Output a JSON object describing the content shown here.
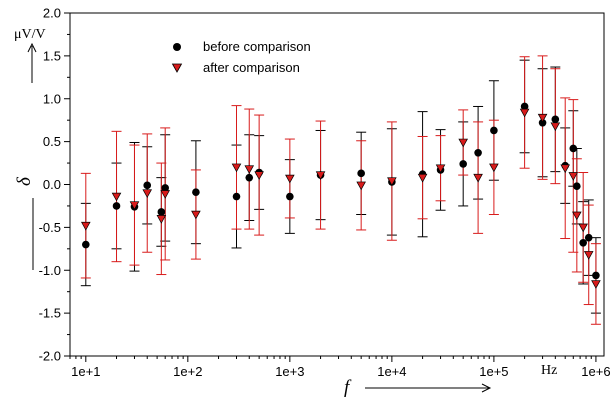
{
  "chart_data": {
    "type": "scatter",
    "title": "",
    "x_scale": "log",
    "xlim": [
      7,
      1200000
    ],
    "ylim": [
      -2.0,
      2.0
    ],
    "x_ticks": [
      10,
      100,
      1000,
      10000,
      100000,
      1000000
    ],
    "x_tick_labels": [
      "1e+1",
      "1e+2",
      "1e+3",
      "1e+4",
      "1e+5",
      "1e+6"
    ],
    "y_ticks": [
      -2.0,
      -1.5,
      -1.0,
      -0.5,
      0.0,
      0.5,
      1.0,
      1.5,
      2.0
    ],
    "y_tick_labels": [
      "-2.0",
      "-1.5",
      "-1.0",
      "-0.5",
      "0.0",
      "0.5",
      "1.0",
      "1.5",
      "2.0"
    ],
    "y_unit": "μV/V",
    "x_unit": "Hz",
    "ylabel_symbol": "δ",
    "xlabel_symbol": "f",
    "grid": false,
    "legend_placement": "top-left",
    "colors": {
      "before": "#000000",
      "after": "#d81b1b"
    },
    "series": [
      {
        "name": "before comparison",
        "marker": "circle",
        "color": "#000000",
        "points": [
          {
            "x": 10,
            "y": -0.7,
            "err": 0.48
          },
          {
            "x": 20,
            "y": -0.25,
            "err": 0.5
          },
          {
            "x": 30,
            "y": -0.26,
            "err": 0.75
          },
          {
            "x": 40,
            "y": -0.01,
            "err": 0.45
          },
          {
            "x": 55,
            "y": -0.32,
            "err": 0.4
          },
          {
            "x": 60,
            "y": -0.04,
            "err": 0.62
          },
          {
            "x": 120,
            "y": -0.09,
            "err": 0.6
          },
          {
            "x": 300,
            "y": -0.14,
            "err": 0.6
          },
          {
            "x": 400,
            "y": 0.08,
            "err": 0.5
          },
          {
            "x": 500,
            "y": 0.14,
            "err": 0.43
          },
          {
            "x": 1000,
            "y": -0.14,
            "err": 0.43
          },
          {
            "x": 2000,
            "y": 0.11,
            "err": 0.52
          },
          {
            "x": 5000,
            "y": 0.13,
            "err": 0.48
          },
          {
            "x": 10000,
            "y": 0.03,
            "err": 0.62
          },
          {
            "x": 20000,
            "y": 0.12,
            "err": 0.73
          },
          {
            "x": 30000,
            "y": 0.17,
            "err": 0.47
          },
          {
            "x": 50000,
            "y": 0.24,
            "err": 0.49
          },
          {
            "x": 70000,
            "y": 0.37,
            "err": 0.54
          },
          {
            "x": 100000,
            "y": 0.63,
            "err": 0.58
          },
          {
            "x": 200000,
            "y": 0.91,
            "err": 0.54
          },
          {
            "x": 300000,
            "y": 0.72,
            "err": 0.63
          },
          {
            "x": 400000,
            "y": 0.76,
            "err": 0.61
          },
          {
            "x": 500000,
            "y": 0.22,
            "err": 0.44
          },
          {
            "x": 600000,
            "y": 0.42,
            "err": 0.44
          },
          {
            "x": 650000,
            "y": -0.02,
            "err": 0.44
          },
          {
            "x": 750000,
            "y": -0.68,
            "err": 0.48
          },
          {
            "x": 850000,
            "y": -0.62,
            "err": 0.44
          },
          {
            "x": 1000000,
            "y": -1.06,
            "err": 0.44
          }
        ]
      },
      {
        "name": "after comparison",
        "marker": "triangle-down",
        "color": "#d81b1b",
        "points": [
          {
            "x": 10,
            "y": -0.48,
            "err": 0.61
          },
          {
            "x": 20,
            "y": -0.14,
            "err": 0.76
          },
          {
            "x": 30,
            "y": -0.24,
            "err": 0.7
          },
          {
            "x": 40,
            "y": -0.1,
            "err": 0.69
          },
          {
            "x": 55,
            "y": -0.4,
            "err": 0.65
          },
          {
            "x": 60,
            "y": -0.11,
            "err": 0.77
          },
          {
            "x": 120,
            "y": -0.35,
            "err": 0.52
          },
          {
            "x": 300,
            "y": 0.2,
            "err": 0.72
          },
          {
            "x": 400,
            "y": 0.18,
            "err": 0.7
          },
          {
            "x": 500,
            "y": 0.11,
            "err": 0.7
          },
          {
            "x": 1000,
            "y": 0.07,
            "err": 0.46
          },
          {
            "x": 2000,
            "y": 0.11,
            "err": 0.63
          },
          {
            "x": 5000,
            "y": -0.01,
            "err": 0.52
          },
          {
            "x": 10000,
            "y": 0.04,
            "err": 0.69
          },
          {
            "x": 20000,
            "y": 0.08,
            "err": 0.48
          },
          {
            "x": 30000,
            "y": 0.19,
            "err": 0.38
          },
          {
            "x": 50000,
            "y": 0.49,
            "err": 0.38
          },
          {
            "x": 70000,
            "y": 0.08,
            "err": 0.65
          },
          {
            "x": 100000,
            "y": 0.2,
            "err": 0.55
          },
          {
            "x": 200000,
            "y": 0.84,
            "err": 0.65
          },
          {
            "x": 300000,
            "y": 0.78,
            "err": 0.72
          },
          {
            "x": 400000,
            "y": 0.68,
            "err": 0.67
          },
          {
            "x": 500000,
            "y": 0.19,
            "err": 0.82
          },
          {
            "x": 600000,
            "y": 0.1,
            "err": 0.89
          },
          {
            "x": 650000,
            "y": -0.36,
            "err": 0.66
          },
          {
            "x": 750000,
            "y": -0.5,
            "err": 0.64
          },
          {
            "x": 850000,
            "y": -0.82,
            "err": 0.58
          },
          {
            "x": 1000000,
            "y": -1.16,
            "err": 0.47
          }
        ]
      }
    ]
  }
}
